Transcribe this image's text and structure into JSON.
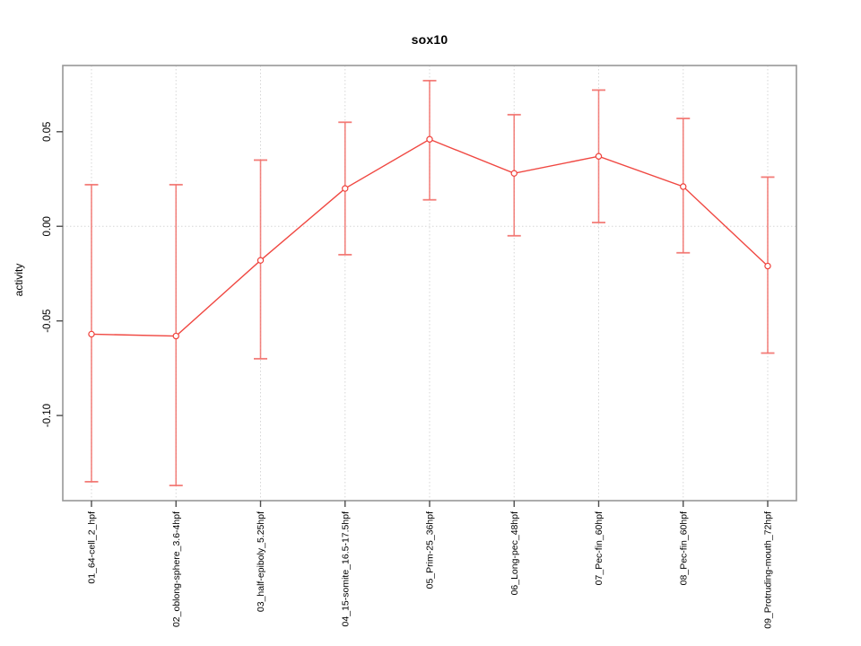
{
  "figure": {
    "title": "sox10",
    "ylabel": "activity"
  },
  "chart_data": {
    "type": "line",
    "title": "sox10",
    "xlabel": "",
    "ylabel": "activity",
    "categories": [
      "01_64-cell_2_hpf",
      "02_oblong-sphere_3.6-4hpf",
      "03_half-epiboly_5.25hpf",
      "04_15-somite_16.5-17.5hpf",
      "05_Prim-25_36hpf",
      "06_Long-pec_48hpf",
      "07_Pec-fin_60hpf",
      "08_Pec-fin_60hpf",
      "09_Protruding-mouth_72hpf"
    ],
    "series": [
      {
        "name": "sox10 activity",
        "marker": "open-circle",
        "values": [
          -0.057,
          -0.058,
          -0.018,
          0.02,
          0.046,
          0.028,
          0.037,
          0.021,
          -0.021
        ],
        "error_upper": [
          0.022,
          0.022,
          0.035,
          0.055,
          0.077,
          0.059,
          0.072,
          0.057,
          0.026
        ],
        "error_lower": [
          -0.135,
          -0.137,
          -0.07,
          -0.015,
          0.014,
          -0.005,
          0.002,
          -0.014,
          -0.067
        ]
      }
    ],
    "yticks": [
      0.05,
      0.0,
      -0.05,
      -0.1
    ],
    "ytick_labels": [
      "0.05",
      "0.00",
      "-0.05",
      "-0.10"
    ],
    "ylim": [
      -0.145,
      0.085
    ],
    "grid": "dotted vertical line at each category; dotted horizontal line at y=0",
    "legend": "none",
    "colors": {
      "series_line": "#f04842",
      "error_bar": "#f2706b",
      "marker_stroke": "#ef403a",
      "grid_line": "#d6d6d6",
      "box_border": "#979797",
      "tick": "#4d4d4d",
      "text": "#000000"
    }
  }
}
